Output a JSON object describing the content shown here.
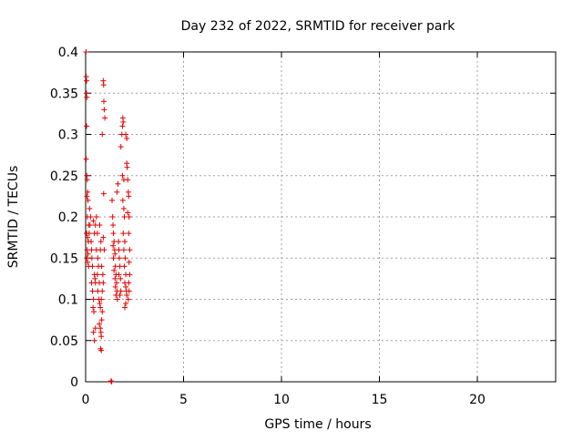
{
  "chart_data": {
    "type": "scatter",
    "title": "Day 232 of 2022, SRMTID for receiver park",
    "xlabel": "GPS time / hours",
    "ylabel": "SRMTID / TECUs",
    "xlim": [
      0,
      24
    ],
    "ylim": [
      0,
      0.4
    ],
    "xticks": [
      0,
      5,
      10,
      15,
      20
    ],
    "yticks": [
      0,
      0.05,
      0.1,
      0.15,
      0.2,
      0.25,
      0.3,
      0.35,
      0.4
    ],
    "xtick_labels": [
      "0",
      "5",
      "10",
      "15",
      "20"
    ],
    "ytick_labels": [
      "0",
      "0.05",
      "0.1",
      "0.15",
      "0.2",
      "0.25",
      "0.3",
      "0.35",
      "0.4"
    ],
    "grid": true,
    "marker_color": "#e00000",
    "series": [
      {
        "marker": "plus",
        "points": [
          [
            0.02,
            0.4
          ],
          [
            0.03,
            0.37
          ],
          [
            0.05,
            0.365
          ],
          [
            0.04,
            0.35
          ],
          [
            0.06,
            0.345
          ],
          [
            0.05,
            0.31
          ],
          [
            0.03,
            0.27
          ],
          [
            0.06,
            0.25
          ],
          [
            0.08,
            0.245
          ],
          [
            0.07,
            0.225
          ],
          [
            0.1,
            0.23
          ],
          [
            0.12,
            0.22
          ],
          [
            0.09,
            0.2
          ],
          [
            0.15,
            0.19
          ],
          [
            0.05,
            0.18
          ],
          [
            0.1,
            0.175
          ],
          [
            0.14,
            0.17
          ],
          [
            0.08,
            0.16
          ],
          [
            0.12,
            0.155
          ],
          [
            0.06,
            0.15
          ],
          [
            0.1,
            0.145
          ],
          [
            0.15,
            0.14
          ],
          [
            0.2,
            0.21
          ],
          [
            0.22,
            0.19
          ],
          [
            0.25,
            0.2
          ],
          [
            0.18,
            0.18
          ],
          [
            0.28,
            0.17
          ],
          [
            0.3,
            0.16
          ],
          [
            0.32,
            0.15
          ],
          [
            0.35,
            0.14
          ],
          [
            0.3,
            0.12
          ],
          [
            0.35,
            0.11
          ],
          [
            0.4,
            0.1
          ],
          [
            0.38,
            0.09
          ],
          [
            0.42,
            0.085
          ],
          [
            0.45,
            0.13
          ],
          [
            0.48,
            0.125
          ],
          [
            0.5,
            0.12
          ],
          [
            0.4,
            0.195
          ],
          [
            0.45,
            0.18
          ],
          [
            0.55,
            0.16
          ],
          [
            0.5,
            0.065
          ],
          [
            0.4,
            0.06
          ],
          [
            0.45,
            0.05
          ],
          [
            0.5,
            0.19
          ],
          [
            0.55,
            0.2
          ],
          [
            0.6,
            0.18
          ],
          [
            0.62,
            0.15
          ],
          [
            0.65,
            0.14
          ],
          [
            0.6,
            0.13
          ],
          [
            0.7,
            0.12
          ],
          [
            0.62,
            0.11
          ],
          [
            0.68,
            0.1
          ],
          [
            0.72,
            0.095
          ],
          [
            0.75,
            0.09
          ],
          [
            0.7,
            0.07
          ],
          [
            0.75,
            0.065
          ],
          [
            0.78,
            0.06
          ],
          [
            0.8,
            0.055
          ],
          [
            0.82,
            0.075
          ],
          [
            0.85,
            0.085
          ],
          [
            0.8,
            0.1
          ],
          [
            0.85,
            0.11
          ],
          [
            0.9,
            0.12
          ],
          [
            0.88,
            0.13
          ],
          [
            0.82,
            0.14
          ],
          [
            0.75,
            0.16
          ],
          [
            0.78,
            0.17
          ],
          [
            0.72,
            0.19
          ],
          [
            0.76,
            0.04
          ],
          [
            0.8,
            0.038
          ],
          [
            0.85,
            0.3
          ],
          [
            0.9,
            0.365
          ],
          [
            0.92,
            0.36
          ],
          [
            0.93,
            0.34
          ],
          [
            0.95,
            0.33
          ],
          [
            0.98,
            0.32
          ],
          [
            0.92,
            0.228
          ],
          [
            0.9,
            0.175
          ],
          [
            0.95,
            0.16
          ],
          [
            1.3,
            0.001
          ],
          [
            1.33,
            0.0
          ],
          [
            1.35,
            0.22
          ],
          [
            1.38,
            0.2
          ],
          [
            1.4,
            0.19
          ],
          [
            1.42,
            0.18
          ],
          [
            1.45,
            0.17
          ],
          [
            1.4,
            0.165
          ],
          [
            1.48,
            0.16
          ],
          [
            1.5,
            0.155
          ],
          [
            1.42,
            0.15
          ],
          [
            1.52,
            0.14
          ],
          [
            1.45,
            0.135
          ],
          [
            1.55,
            0.13
          ],
          [
            1.5,
            0.125
          ],
          [
            1.58,
            0.12
          ],
          [
            1.52,
            0.115
          ],
          [
            1.6,
            0.11
          ],
          [
            1.55,
            0.105
          ],
          [
            1.62,
            0.1
          ],
          [
            1.65,
            0.24
          ],
          [
            1.6,
            0.23
          ],
          [
            1.68,
            0.17
          ],
          [
            1.7,
            0.16
          ],
          [
            1.72,
            0.15
          ],
          [
            1.75,
            0.14
          ],
          [
            1.7,
            0.13
          ],
          [
            1.78,
            0.125
          ],
          [
            1.8,
            0.11
          ],
          [
            1.75,
            0.105
          ],
          [
            1.8,
            0.285
          ],
          [
            1.85,
            0.3
          ],
          [
            1.88,
            0.31
          ],
          [
            1.9,
            0.32
          ],
          [
            1.92,
            0.315
          ],
          [
            1.88,
            0.25
          ],
          [
            1.95,
            0.245
          ],
          [
            1.9,
            0.22
          ],
          [
            1.95,
            0.21
          ],
          [
            1.98,
            0.2
          ],
          [
            1.92,
            0.18
          ],
          [
            2.0,
            0.17
          ],
          [
            1.95,
            0.16
          ],
          [
            2.02,
            0.15
          ],
          [
            1.98,
            0.14
          ],
          [
            2.05,
            0.13
          ],
          [
            2.0,
            0.12
          ],
          [
            2.05,
            0.115
          ],
          [
            2.08,
            0.11
          ],
          [
            2.1,
            0.105
          ],
          [
            2.0,
            0.09
          ],
          [
            2.05,
            0.095
          ],
          [
            2.1,
            0.265
          ],
          [
            2.12,
            0.26
          ],
          [
            2.15,
            0.245
          ],
          [
            2.18,
            0.23
          ],
          [
            2.2,
            0.225
          ],
          [
            2.15,
            0.205
          ],
          [
            2.22,
            0.2
          ],
          [
            2.2,
            0.18
          ],
          [
            2.25,
            0.16
          ],
          [
            2.22,
            0.145
          ],
          [
            2.25,
            0.13
          ],
          [
            2.2,
            0.12
          ],
          [
            2.22,
            0.11
          ],
          [
            2.18,
            0.1
          ],
          [
            2.05,
            0.3
          ],
          [
            2.1,
            0.295
          ]
        ]
      }
    ]
  }
}
